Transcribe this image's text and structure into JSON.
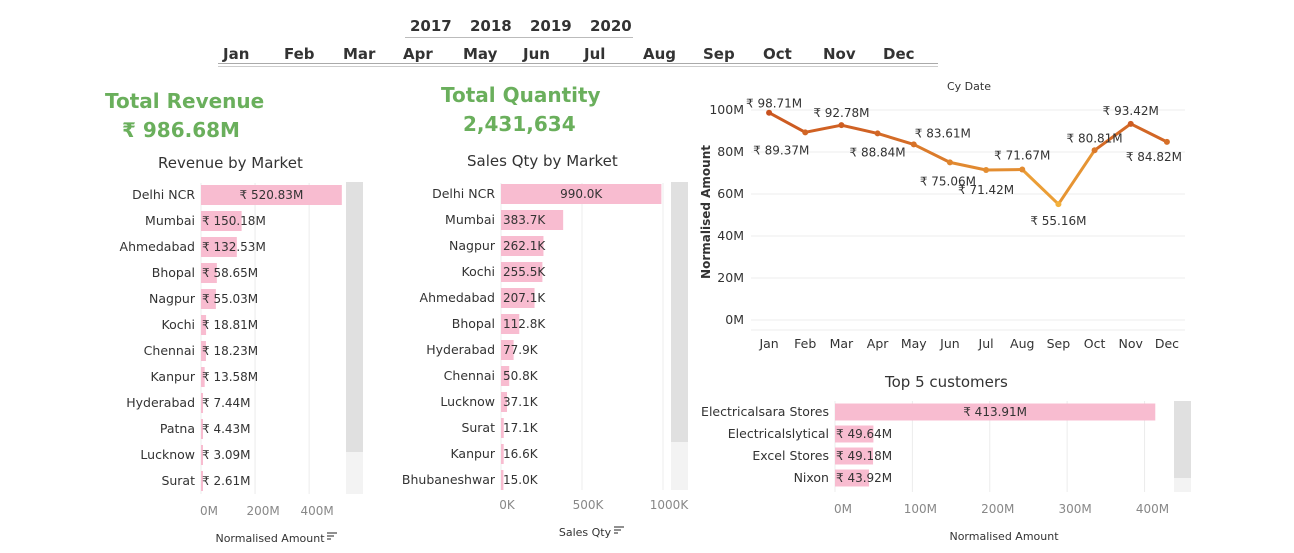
{
  "filters": {
    "years": [
      "2017",
      "2018",
      "2019",
      "2020"
    ],
    "months": [
      "Jan",
      "Feb",
      "Mar",
      "Apr",
      "May",
      "Jun",
      "Jul",
      "Aug",
      "Sep",
      "Oct",
      "Nov",
      "Dec"
    ]
  },
  "kpis": {
    "revenue_label": "Total Revenue",
    "revenue_value": "₹ 986.68M",
    "quantity_label": "Total Quantity",
    "quantity_value": "2,431,634"
  },
  "colors": {
    "bar": "#f8bcd0",
    "kpi": "#6aaf5c",
    "line_high": "#c8501e",
    "line_low": "#f3b13c"
  },
  "chart_data": [
    {
      "type": "bar",
      "title": "Revenue by Market",
      "xlabel": "Normalised Amount",
      "categories": [
        "Delhi NCR",
        "Mumbai",
        "Ahmedabad",
        "Bhopal",
        "Nagpur",
        "Kochi",
        "Chennai",
        "Kanpur",
        "Hyderabad",
        "Patna",
        "Lucknow",
        "Surat"
      ],
      "values": [
        520.83,
        150.18,
        132.53,
        58.65,
        55.03,
        18.81,
        18.23,
        13.58,
        7.44,
        4.43,
        3.09,
        2.61
      ],
      "labels": [
        "₹ 520.83M",
        "₹ 150.18M",
        "₹ 132.53M",
        "₹ 58.65M",
        "₹ 55.03M",
        "₹ 18.81M",
        "₹ 18.23M",
        "₹ 13.58M",
        "₹ 7.44M",
        "₹ 4.43M",
        "₹ 3.09M",
        "₹ 2.61M"
      ],
      "xticks": [
        "0M",
        "200M",
        "400M"
      ],
      "xlim": [
        0,
        540
      ]
    },
    {
      "type": "bar",
      "title": "Sales Qty by Market",
      "xlabel": "Sales Qty",
      "categories": [
        "Delhi NCR",
        "Mumbai",
        "Nagpur",
        "Kochi",
        "Ahmedabad",
        "Bhopal",
        "Hyderabad",
        "Chennai",
        "Lucknow",
        "Surat",
        "Kanpur",
        "Bhubaneshwar"
      ],
      "values": [
        990.0,
        383.7,
        262.1,
        255.5,
        207.1,
        112.8,
        77.9,
        50.8,
        37.1,
        17.1,
        16.6,
        15.0
      ],
      "labels": [
        "990.0K",
        "383.7K",
        "262.1K",
        "255.5K",
        "207.1K",
        "112.8K",
        "77.9K",
        "50.8K",
        "37.1K",
        "17.1K",
        "16.6K",
        "15.0K"
      ],
      "xticks": [
        "0K",
        "500K",
        "1000K"
      ],
      "xlim": [
        0,
        1000
      ]
    },
    {
      "type": "line",
      "title": "Cy Date",
      "ylabel": "Normalised Amount",
      "x": [
        "Jan",
        "Feb",
        "Mar",
        "Apr",
        "May",
        "Jun",
        "Jul",
        "Aug",
        "Sep",
        "Oct",
        "Nov",
        "Dec"
      ],
      "values": [
        98.71,
        89.37,
        92.78,
        88.84,
        83.61,
        75.06,
        71.42,
        71.67,
        55.16,
        80.81,
        93.42,
        84.82
      ],
      "labels": [
        "₹ 98.71M",
        "₹ 89.37M",
        "₹ 92.78M",
        "₹ 88.84M",
        "₹ 83.61M",
        "₹ 75.06M",
        "₹ 71.42M",
        "₹ 71.67M",
        "₹ 55.16M",
        "₹ 80.81M",
        "₹ 93.42M",
        "₹ 84.82M"
      ],
      "yticks": [
        "0M",
        "20M",
        "40M",
        "60M",
        "80M",
        "100M"
      ],
      "ylim": [
        0,
        100
      ],
      "grid": true
    },
    {
      "type": "bar",
      "title": "Top 5 customers",
      "xlabel": "Normalised Amount",
      "categories": [
        "Electricalsara Stores",
        "Electricalslytical",
        "Excel Stores",
        "Nixon"
      ],
      "values": [
        413.91,
        49.64,
        49.18,
        43.92
      ],
      "labels": [
        "₹ 413.91M",
        "₹ 49.64M",
        "₹ 49.18M",
        "₹ 43.92M"
      ],
      "xticks": [
        "0M",
        "100M",
        "200M",
        "300M",
        "400M"
      ],
      "xlim": [
        0,
        420
      ]
    }
  ]
}
